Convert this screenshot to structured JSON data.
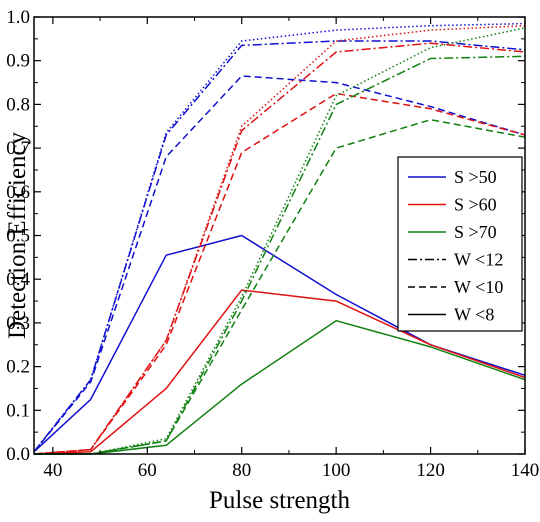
{
  "chart_data": {
    "type": "line",
    "title": "",
    "xlabel": "Pulse strength",
    "ylabel": "Detection Efficiency",
    "xlim": [
      36,
      140
    ],
    "ylim": [
      0.0,
      1.0
    ],
    "xticks": [
      40,
      60,
      80,
      100,
      120,
      140
    ],
    "yticks": [
      0.0,
      0.1,
      0.2,
      0.3,
      0.4,
      0.5,
      0.6,
      0.7,
      0.8,
      0.9,
      1.0
    ],
    "ytick_labels": [
      "0.0",
      "0.1",
      "0.2",
      "0.3",
      "0.4",
      "0.5",
      "0.6",
      "0.7",
      "0.8",
      "0.9",
      "1.0"
    ],
    "grid": false,
    "legend_position": "right",
    "legend": [
      {
        "label": "S >50",
        "color": "#1010d0",
        "style": "solid"
      },
      {
        "label": "S >60",
        "color": "#e01010",
        "style": "solid"
      },
      {
        "label": "S >70",
        "color": "#108010",
        "style": "solid"
      },
      {
        "label": "W <12",
        "color": "#000000",
        "style": "dashdot"
      },
      {
        "label": "W <10",
        "color": "#000000",
        "style": "dashed"
      },
      {
        "label": "W <8",
        "color": "#000000",
        "style": "solid"
      }
    ],
    "series": [
      {
        "group": "S >50",
        "cut": "W <12",
        "color": "#1010d0",
        "style": "dashdot",
        "x": [
          36,
          48,
          64,
          80,
          100,
          120,
          140
        ],
        "y": [
          0.005,
          0.17,
          0.73,
          0.935,
          0.945,
          0.945,
          0.925
        ]
      },
      {
        "group": "S >50",
        "cut": "W <10",
        "color": "#1010d0",
        "style": "dashed",
        "x": [
          36,
          48,
          64,
          80,
          100,
          120,
          140
        ],
        "y": [
          0.005,
          0.165,
          0.68,
          0.865,
          0.85,
          0.795,
          0.73
        ]
      },
      {
        "group": "S >50",
        "cut": "W <8",
        "color": "#1010d0",
        "style": "solid",
        "x": [
          36,
          48,
          64,
          80,
          100,
          120,
          140
        ],
        "y": [
          0.005,
          0.125,
          0.455,
          0.5,
          0.365,
          0.25,
          0.18
        ]
      },
      {
        "group": "S >50",
        "cut": "extra",
        "color": "#1010d0",
        "style": "dotted",
        "x": [
          36,
          48,
          64,
          80,
          100,
          120,
          140
        ],
        "y": [
          0.005,
          0.17,
          0.735,
          0.945,
          0.97,
          0.98,
          0.985
        ]
      },
      {
        "group": "S >60",
        "cut": "W <12",
        "color": "#e01010",
        "style": "dashdot",
        "x": [
          36,
          48,
          64,
          80,
          100,
          120,
          140
        ],
        "y": [
          0.0,
          0.01,
          0.26,
          0.74,
          0.92,
          0.94,
          0.92
        ]
      },
      {
        "group": "S >60",
        "cut": "W <10",
        "color": "#e01010",
        "style": "dashed",
        "x": [
          36,
          48,
          64,
          80,
          100,
          120,
          140
        ],
        "y": [
          0.0,
          0.01,
          0.25,
          0.69,
          0.825,
          0.79,
          0.73
        ]
      },
      {
        "group": "S >60",
        "cut": "W <8",
        "color": "#e01010",
        "style": "solid",
        "x": [
          36,
          48,
          64,
          80,
          100,
          120,
          140
        ],
        "y": [
          0.0,
          0.005,
          0.15,
          0.375,
          0.35,
          0.25,
          0.175
        ]
      },
      {
        "group": "S >60",
        "cut": "extra",
        "color": "#e01010",
        "style": "dotted",
        "x": [
          36,
          48,
          64,
          80,
          100,
          120,
          140
        ],
        "y": [
          0.0,
          0.01,
          0.26,
          0.75,
          0.945,
          0.97,
          0.98
        ]
      },
      {
        "group": "S >70",
        "cut": "W <12",
        "color": "#108010",
        "style": "dashdot",
        "x": [
          36,
          48,
          64,
          80,
          100,
          120,
          140
        ],
        "y": [
          0.0,
          0.0,
          0.03,
          0.35,
          0.8,
          0.905,
          0.91
        ]
      },
      {
        "group": "S >70",
        "cut": "W <10",
        "color": "#108010",
        "style": "dashed",
        "x": [
          36,
          48,
          64,
          80,
          100,
          120,
          140
        ],
        "y": [
          0.0,
          0.0,
          0.03,
          0.33,
          0.7,
          0.765,
          0.725
        ]
      },
      {
        "group": "S >70",
        "cut": "W <8",
        "color": "#108010",
        "style": "solid",
        "x": [
          36,
          48,
          64,
          80,
          100,
          120,
          140
        ],
        "y": [
          0.0,
          0.0,
          0.02,
          0.16,
          0.305,
          0.245,
          0.17
        ]
      },
      {
        "group": "S >70",
        "cut": "extra",
        "color": "#108010",
        "style": "dotted",
        "x": [
          36,
          48,
          64,
          80,
          100,
          120,
          140
        ],
        "y": [
          0.0,
          0.0,
          0.035,
          0.36,
          0.82,
          0.93,
          0.975
        ]
      }
    ]
  }
}
